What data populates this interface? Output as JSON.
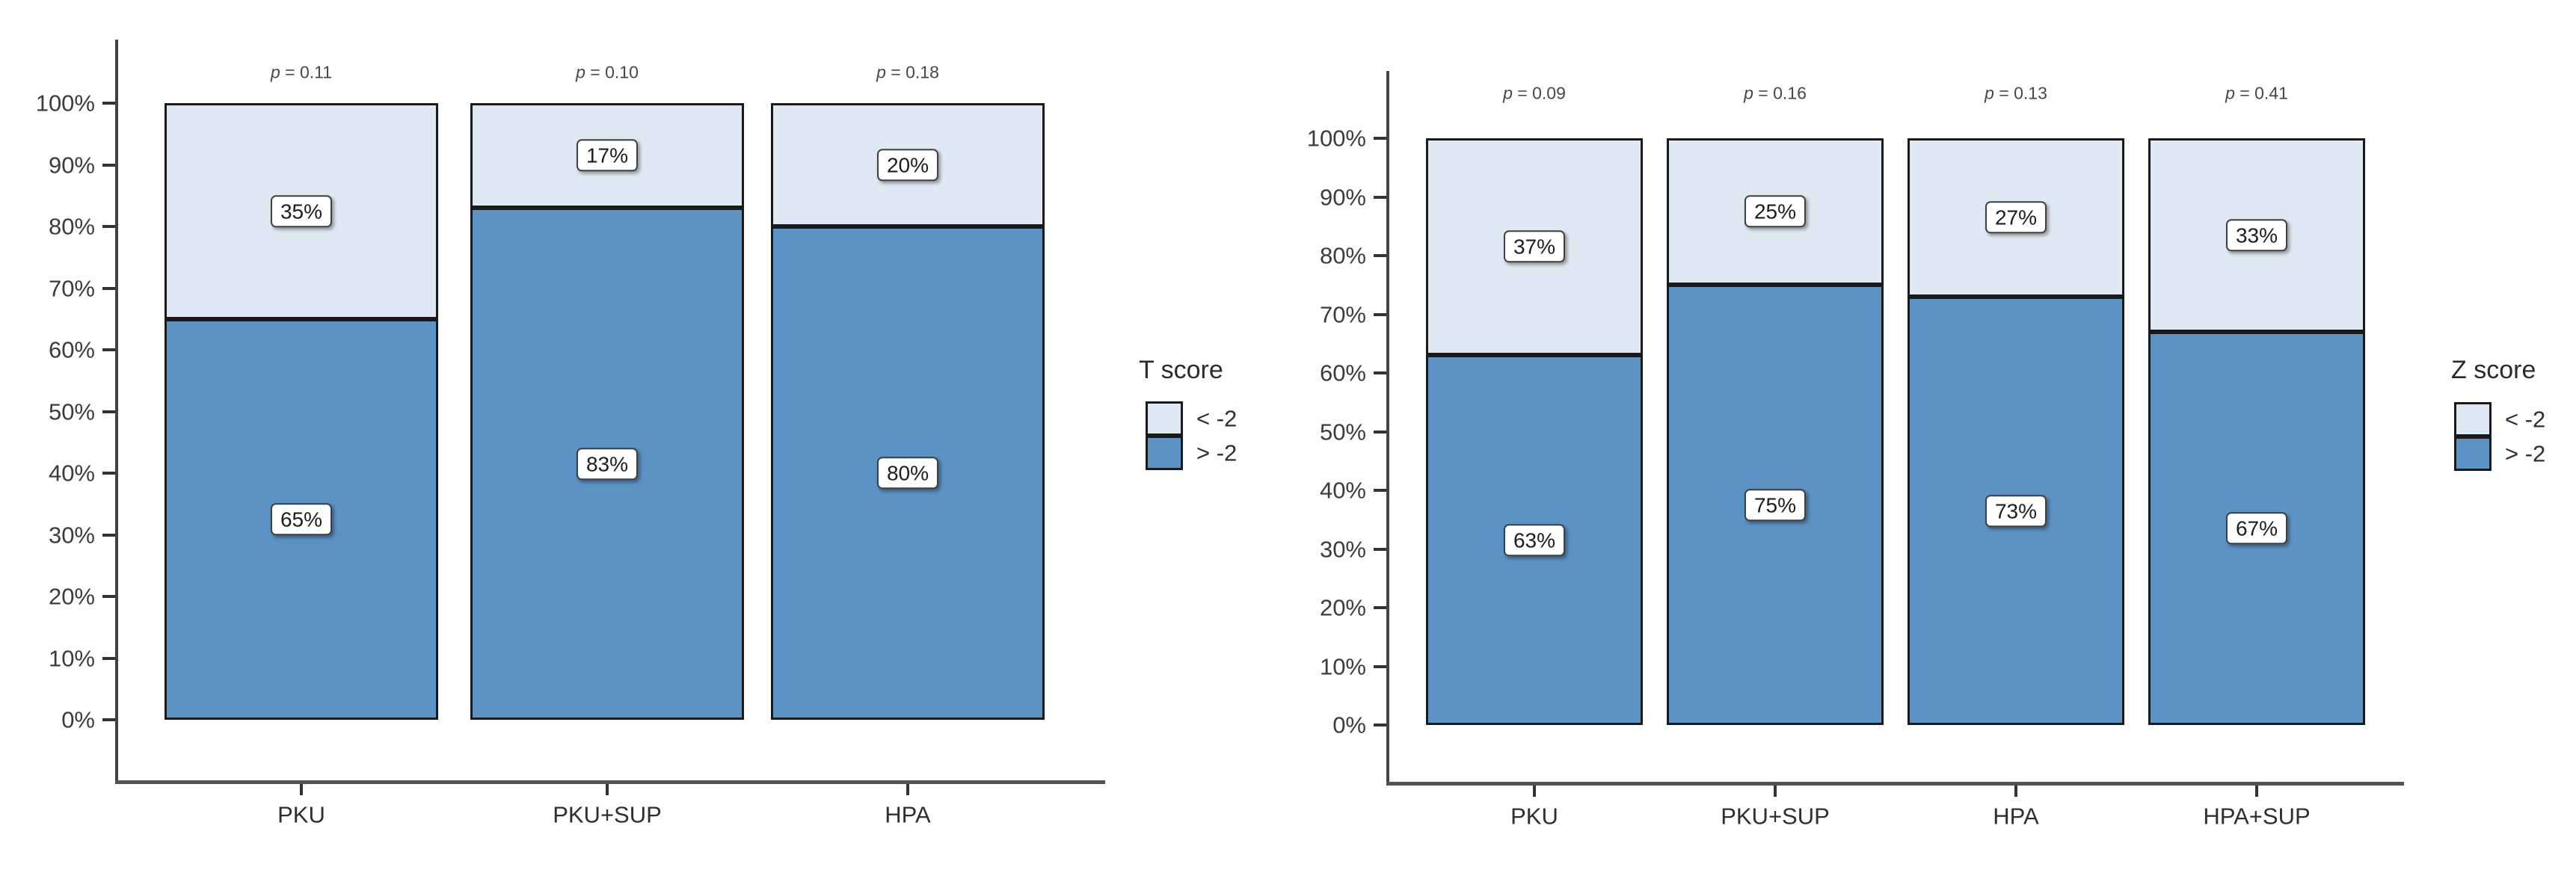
{
  "page": {
    "background": "#ffffff"
  },
  "colors": {
    "segment_light": "#dfe9f4",
    "segment_dark": "#5c92c4",
    "bar_border": "#1a1a1a",
    "axis": "#424242",
    "text": "#3c3c3c"
  },
  "chart_data": [
    {
      "type": "bar",
      "stacked": true,
      "orientation": "vertical",
      "title": "",
      "xlabel": "",
      "ylabel": "",
      "ylim": [
        0,
        100
      ],
      "grid": false,
      "legend_position": "right",
      "legend_title": "T score",
      "legend": [
        {
          "label": "< -2",
          "color": "#dfe9f4"
        },
        {
          "label": "> -2",
          "color": "#5c92c4"
        }
      ],
      "categories": [
        "PKU",
        "PKU+SUP",
        "HPA"
      ],
      "series": [
        {
          "name": "> -2",
          "color": "#5c92c4",
          "values": [
            65,
            83,
            80
          ],
          "labels": [
            "65%",
            "83%",
            "80%"
          ]
        },
        {
          "name": "< -2",
          "color": "#dfe9f4",
          "values": [
            35,
            17,
            20
          ],
          "labels": [
            "35%",
            "17%",
            "20%"
          ]
        }
      ],
      "p_values": [
        "p = 0.11",
        "p = 0.10",
        "p = 0.18"
      ],
      "yticks": [
        "0%",
        "10%",
        "20%",
        "30%",
        "40%",
        "50%",
        "60%",
        "70%",
        "80%",
        "90%",
        "100%"
      ]
    },
    {
      "type": "bar",
      "stacked": true,
      "orientation": "vertical",
      "title": "",
      "xlabel": "",
      "ylabel": "",
      "ylim": [
        0,
        100
      ],
      "grid": false,
      "legend_position": "right",
      "legend_title": "Z score",
      "legend": [
        {
          "label": "< -2",
          "color": "#dfe9f4"
        },
        {
          "label": "> -2",
          "color": "#5c92c4"
        }
      ],
      "categories": [
        "PKU",
        "PKU+SUP",
        "HPA",
        "HPA+SUP"
      ],
      "series": [
        {
          "name": "> -2",
          "color": "#5c92c4",
          "values": [
            63,
            75,
            73,
            67
          ],
          "labels": [
            "63%",
            "75%",
            "73%",
            "67%"
          ]
        },
        {
          "name": "< -2",
          "color": "#dfe9f4",
          "values": [
            37,
            25,
            27,
            33
          ],
          "labels": [
            "37%",
            "25%",
            "27%",
            "33%"
          ]
        }
      ],
      "p_values": [
        "p = 0.09",
        "p = 0.16",
        "p = 0.13",
        "p = 0.41"
      ],
      "yticks": [
        "0%",
        "10%",
        "20%",
        "30%",
        "40%",
        "50%",
        "60%",
        "70%",
        "80%",
        "90%",
        "100%"
      ]
    }
  ]
}
